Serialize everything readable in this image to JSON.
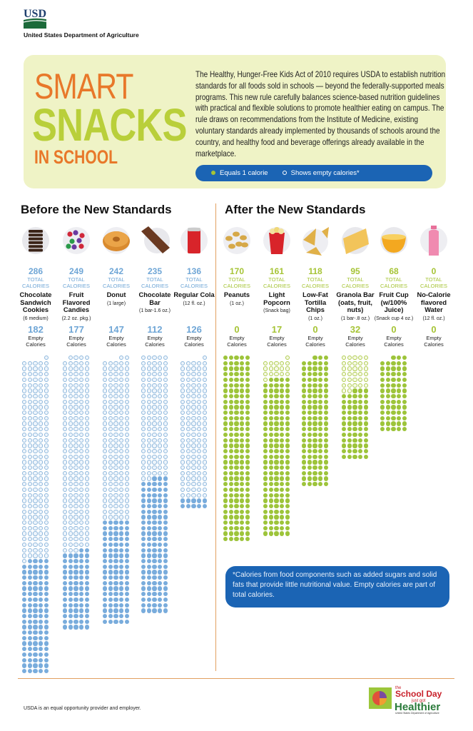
{
  "header": {
    "logo": "USDA",
    "agency": "United States Department of Agriculture"
  },
  "hero": {
    "title_line1": "SMART",
    "title_line2": "SNACKS",
    "title_line3": "IN SCHOOL",
    "intro": "The Healthy, Hunger-Free Kids Act of 2010 requires USDA to establish nutrition standards for all foods sold in schools — beyond the federally-supported meals programs. This new rule carefully balances science-based nutrition guidelines with practical and flexible solutions to promote healthier eating on campus. The rule draws on recommendations from the Institute of Medicine, existing voluntary standards already implemented by thousands of schools around the country, and healthy food and beverage offerings already available in the marketplace.",
    "legend": {
      "filled": "Equals 1 calorie",
      "hollow": "Shows empty calories*"
    }
  },
  "colors": {
    "before": "#6fa6d6",
    "after": "#a6c436",
    "orange": "#e8782a",
    "blue_box": "#1b64b4"
  },
  "labels": {
    "total": "TOTAL",
    "calories": "CALORIES",
    "empty1": "Empty",
    "empty2": "Calories"
  },
  "chart_data": {
    "type": "dot-matrix",
    "unit": "one dot equals 1 calorie; hollow dots show empty calories",
    "groups": [
      {
        "title": "Before the New Standards",
        "items": [
          {
            "name": "Chocolate Sandwich Cookies",
            "serving": "(6 medium)",
            "total": 286,
            "empty": 182,
            "icon": "cookies-icon"
          },
          {
            "name": "Fruit Flavored Candies",
            "serving": "(2.2 oz. pkg.)",
            "total": 249,
            "empty": 177,
            "icon": "candies-icon"
          },
          {
            "name": "Donut",
            "serving": "(1 large)",
            "total": 242,
            "empty": 147,
            "icon": "donut-icon"
          },
          {
            "name": "Chocolate Bar",
            "serving": "(1 bar-1.6 oz.)",
            "total": 235,
            "empty": 112,
            "icon": "chocolate-bar-icon"
          },
          {
            "name": "Regular Cola",
            "serving": "(12 fl. oz.)",
            "total": 136,
            "empty": 126,
            "icon": "cola-can-icon"
          }
        ]
      },
      {
        "title": "After the New Standards",
        "items": [
          {
            "name": "Peanuts",
            "serving": "(1 oz.)",
            "total": 170,
            "empty": 0,
            "icon": "peanuts-icon"
          },
          {
            "name": "Light Popcorn",
            "serving": "(Snack bag)",
            "total": 161,
            "empty": 17,
            "icon": "popcorn-icon"
          },
          {
            "name": "Low-Fat Tortilla Chips",
            "serving": "(1 oz.)",
            "total": 118,
            "empty": 0,
            "icon": "tortilla-chips-icon"
          },
          {
            "name": "Granola Bar (oats, fruit, nuts)",
            "serving": "(1 bar-.8 oz.)",
            "total": 95,
            "empty": 32,
            "icon": "granola-bar-icon"
          },
          {
            "name": "Fruit Cup (w/100% Juice)",
            "serving": "(Snack cup 4 oz.)",
            "total": 68,
            "empty": 0,
            "icon": "fruit-cup-icon"
          },
          {
            "name": "No-Calorie flavored Water",
            "serving": "(12 fl. oz.)",
            "total": 0,
            "empty": 0,
            "icon": "water-bottle-icon"
          }
        ]
      }
    ]
  },
  "note": "*Calories from food components such as added sugars and solid fats that provide little nutritional value. Empty calories are part of total calories.",
  "footer": {
    "text": "USDA is an equal opportunity provider and employer.",
    "logo_text": "the School Day just got Healthier"
  }
}
